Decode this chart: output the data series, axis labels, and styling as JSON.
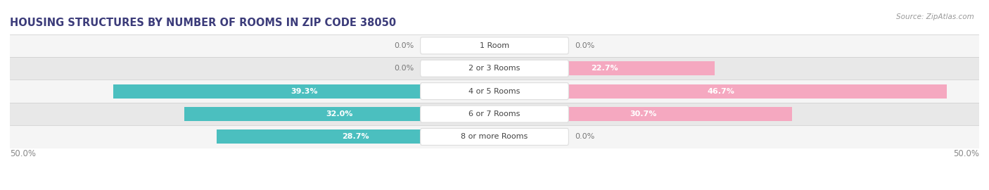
{
  "title": "HOUSING STRUCTURES BY NUMBER OF ROOMS IN ZIP CODE 38050",
  "source": "Source: ZipAtlas.com",
  "categories": [
    "1 Room",
    "2 or 3 Rooms",
    "4 or 5 Rooms",
    "6 or 7 Rooms",
    "8 or more Rooms"
  ],
  "owner_values": [
    0.0,
    0.0,
    39.3,
    32.0,
    28.7
  ],
  "renter_values": [
    0.0,
    22.7,
    46.7,
    30.7,
    0.0
  ],
  "owner_color": "#4BBFBF",
  "renter_color": "#F08098",
  "renter_color_light": "#F5A8C0",
  "row_bg_color_odd": "#F5F5F5",
  "row_bg_color_even": "#E8E8E8",
  "xlim": [
    -50,
    50
  ],
  "bottom_left_label": "50.0%",
  "bottom_right_label": "50.0%",
  "title_color": "#3C3C7A",
  "source_color": "#999999",
  "label_color_dark": "#777777",
  "category_label_color": "#444444",
  "figsize": [
    14.06,
    2.7
  ],
  "dpi": 100
}
